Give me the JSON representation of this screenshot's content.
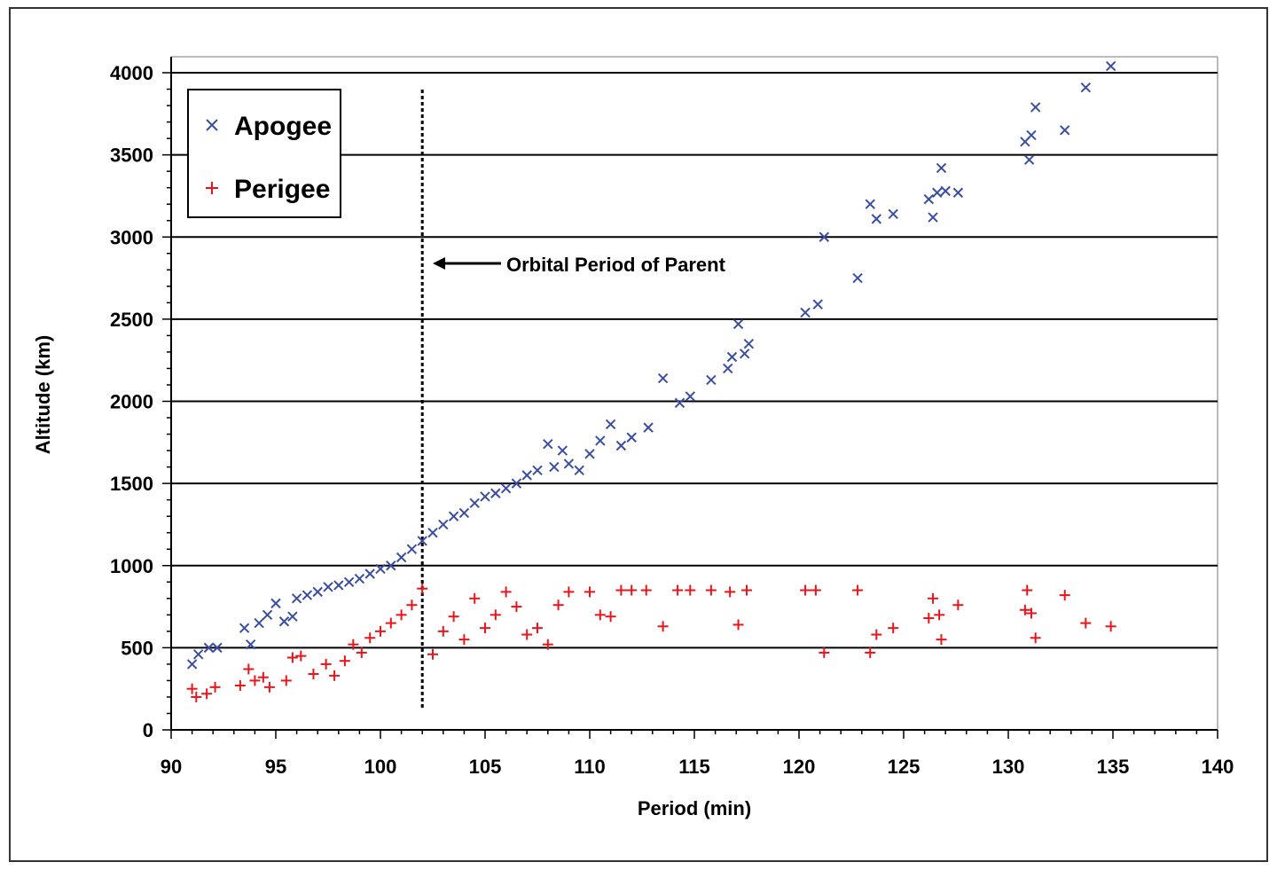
{
  "chart_data": {
    "type": "scatter",
    "title": "",
    "xlabel": "Period  (min)",
    "ylabel": "Altitude  (km)",
    "xlim": [
      90,
      140
    ],
    "ylim": [
      0,
      4000
    ],
    "x_ticks": [
      "90",
      "95",
      "100",
      "105",
      "110",
      "115",
      "120",
      "125",
      "130",
      "135",
      "140"
    ],
    "y_ticks": [
      "0",
      "500",
      "1000",
      "1500",
      "2000",
      "2500",
      "3000",
      "3500",
      "4000"
    ],
    "grid": "horizontal",
    "legend_position": "top-left",
    "annotation": {
      "text": "Orbital Period of Parent",
      "x": 102
    },
    "colors": {
      "apogee": "#3a4fa0",
      "perigee": "#e8151b"
    },
    "series": [
      {
        "name": "Apogee",
        "marker": "x",
        "points": [
          [
            91.0,
            400
          ],
          [
            91.3,
            460
          ],
          [
            91.8,
            500
          ],
          [
            92.2,
            500
          ],
          [
            93.5,
            620
          ],
          [
            93.8,
            520
          ],
          [
            94.2,
            650
          ],
          [
            94.6,
            700
          ],
          [
            95.0,
            770
          ],
          [
            95.4,
            660
          ],
          [
            95.8,
            690
          ],
          [
            96.0,
            800
          ],
          [
            96.5,
            820
          ],
          [
            97.0,
            840
          ],
          [
            97.5,
            870
          ],
          [
            98.0,
            880
          ],
          [
            98.5,
            900
          ],
          [
            99.0,
            920
          ],
          [
            99.5,
            950
          ],
          [
            100.0,
            980
          ],
          [
            100.5,
            1000
          ],
          [
            101.0,
            1050
          ],
          [
            101.5,
            1100
          ],
          [
            102.0,
            1150
          ],
          [
            102.5,
            1200
          ],
          [
            103.0,
            1250
          ],
          [
            103.5,
            1300
          ],
          [
            104.0,
            1320
          ],
          [
            104.5,
            1380
          ],
          [
            105.0,
            1420
          ],
          [
            105.5,
            1440
          ],
          [
            106.0,
            1470
          ],
          [
            106.5,
            1500
          ],
          [
            107.0,
            1550
          ],
          [
            107.5,
            1580
          ],
          [
            108.0,
            1740
          ],
          [
            108.3,
            1600
          ],
          [
            108.7,
            1700
          ],
          [
            109.0,
            1620
          ],
          [
            109.5,
            1580
          ],
          [
            110.0,
            1680
          ],
          [
            110.5,
            1760
          ],
          [
            111.0,
            1860
          ],
          [
            111.5,
            1730
          ],
          [
            112.0,
            1780
          ],
          [
            112.8,
            1840
          ],
          [
            113.5,
            2140
          ],
          [
            114.3,
            1990
          ],
          [
            114.8,
            2030
          ],
          [
            115.8,
            2130
          ],
          [
            116.6,
            2200
          ],
          [
            116.8,
            2270
          ],
          [
            117.1,
            2470
          ],
          [
            117.4,
            2290
          ],
          [
            117.6,
            2350
          ],
          [
            120.3,
            2540
          ],
          [
            120.9,
            2590
          ],
          [
            121.2,
            3000
          ],
          [
            122.8,
            2750
          ],
          [
            123.4,
            3200
          ],
          [
            123.7,
            3110
          ],
          [
            124.5,
            3140
          ],
          [
            126.2,
            3230
          ],
          [
            126.4,
            3120
          ],
          [
            126.6,
            3270
          ],
          [
            126.8,
            3420
          ],
          [
            127.0,
            3280
          ],
          [
            127.6,
            3270
          ],
          [
            130.8,
            3580
          ],
          [
            131.0,
            3470
          ],
          [
            131.1,
            3620
          ],
          [
            131.3,
            3790
          ],
          [
            132.7,
            3650
          ],
          [
            133.7,
            3910
          ],
          [
            134.9,
            4040
          ]
        ]
      },
      {
        "name": "Perigee",
        "marker": "+",
        "points": [
          [
            91.0,
            250
          ],
          [
            91.2,
            200
          ],
          [
            91.7,
            220
          ],
          [
            92.1,
            260
          ],
          [
            93.3,
            270
          ],
          [
            93.7,
            370
          ],
          [
            94.0,
            300
          ],
          [
            94.4,
            320
          ],
          [
            94.7,
            260
          ],
          [
            95.5,
            300
          ],
          [
            95.8,
            440
          ],
          [
            96.2,
            450
          ],
          [
            96.8,
            340
          ],
          [
            97.4,
            400
          ],
          [
            97.8,
            330
          ],
          [
            98.3,
            420
          ],
          [
            98.7,
            520
          ],
          [
            99.1,
            470
          ],
          [
            99.5,
            560
          ],
          [
            100.0,
            600
          ],
          [
            100.5,
            650
          ],
          [
            101.0,
            700
          ],
          [
            101.5,
            760
          ],
          [
            102.0,
            860
          ],
          [
            102.5,
            460
          ],
          [
            103.0,
            600
          ],
          [
            103.5,
            690
          ],
          [
            104.0,
            550
          ],
          [
            104.5,
            800
          ],
          [
            105.0,
            620
          ],
          [
            105.5,
            700
          ],
          [
            106.0,
            840
          ],
          [
            106.5,
            750
          ],
          [
            107.0,
            580
          ],
          [
            107.5,
            620
          ],
          [
            108.0,
            520
          ],
          [
            108.5,
            760
          ],
          [
            109.0,
            840
          ],
          [
            110.0,
            840
          ],
          [
            110.5,
            700
          ],
          [
            111.0,
            690
          ],
          [
            111.5,
            850
          ],
          [
            112.0,
            850
          ],
          [
            112.7,
            850
          ],
          [
            113.5,
            630
          ],
          [
            114.2,
            850
          ],
          [
            114.8,
            850
          ],
          [
            115.8,
            850
          ],
          [
            116.7,
            840
          ],
          [
            117.1,
            640
          ],
          [
            117.5,
            850
          ],
          [
            120.3,
            850
          ],
          [
            120.8,
            850
          ],
          [
            121.2,
            470
          ],
          [
            122.8,
            850
          ],
          [
            123.4,
            470
          ],
          [
            123.7,
            580
          ],
          [
            124.5,
            620
          ],
          [
            126.2,
            680
          ],
          [
            126.4,
            800
          ],
          [
            126.7,
            700
          ],
          [
            126.8,
            550
          ],
          [
            127.6,
            760
          ],
          [
            130.8,
            730
          ],
          [
            130.9,
            850
          ],
          [
            131.1,
            710
          ],
          [
            131.3,
            560
          ],
          [
            132.7,
            820
          ],
          [
            133.7,
            650
          ],
          [
            134.9,
            630
          ]
        ]
      }
    ]
  }
}
